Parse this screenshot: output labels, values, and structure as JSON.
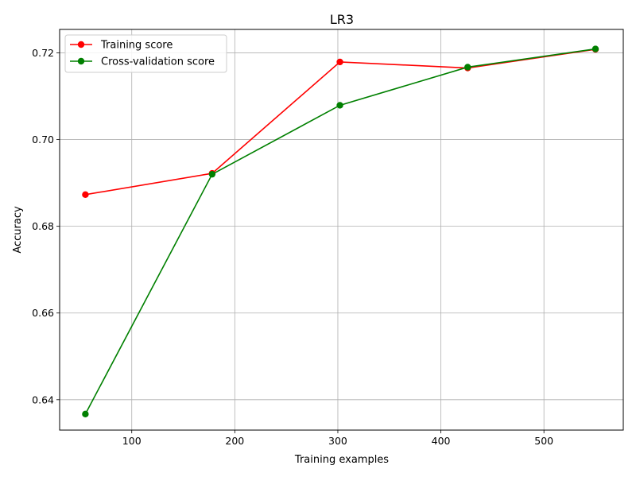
{
  "chart_data": {
    "type": "line",
    "title": "LR3",
    "xlabel": "Training examples",
    "ylabel": "Accuracy",
    "xlim": [
      30,
      577
    ],
    "ylim": [
      0.633,
      0.7254
    ],
    "xticks": [
      100,
      200,
      300,
      400,
      500
    ],
    "yticks": [
      0.64,
      0.66,
      0.68,
      0.7,
      0.72
    ],
    "ytick_labels": [
      "0.64",
      "0.66",
      "0.68",
      "0.70",
      "0.72"
    ],
    "grid": true,
    "legend_position": "top-left",
    "x": [
      55,
      178,
      302,
      426,
      550
    ],
    "series": [
      {
        "name": "Training score",
        "color": "#ff0000",
        "values": [
          0.6873,
          0.6922,
          0.7179,
          0.7165,
          0.7208
        ]
      },
      {
        "name": "Cross-validation score",
        "color": "#008000",
        "values": [
          0.6367,
          0.692,
          0.7079,
          0.7167,
          0.7209
        ]
      }
    ]
  }
}
